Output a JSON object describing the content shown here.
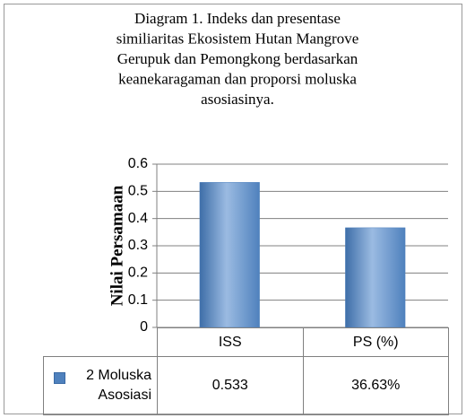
{
  "chart_data": {
    "type": "bar",
    "title": [
      "Diagram 1. Indeks dan presentase",
      "similiaritas Ekosistem Hutan Mangrove",
      "Gerupuk dan Pemongkong berdasarkan",
      "keanekaragaman dan proporsi moluska",
      "asosiasinya."
    ],
    "y_label": "Nilai Persamaan",
    "categories": [
      "ISS",
      "PS (%)"
    ],
    "series": [
      {
        "name": "2 Moluska Asosiasi",
        "color": "#4f81bd",
        "values": [
          0.533,
          0.3663
        ],
        "value_labels": [
          "0.533",
          "36.63%"
        ]
      }
    ],
    "ylim": [
      0,
      0.6
    ],
    "yticks": [
      0,
      0.1,
      0.2,
      0.3,
      0.4,
      0.5,
      0.6
    ],
    "grid": true
  }
}
